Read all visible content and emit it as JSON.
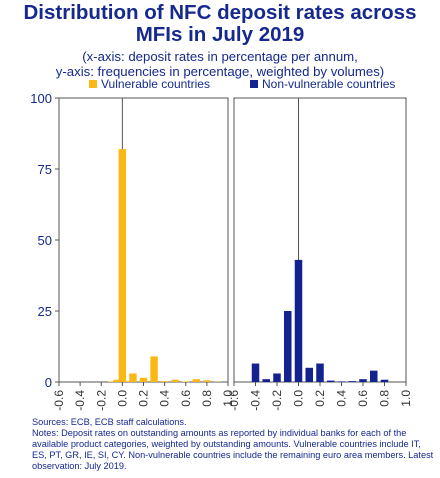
{
  "title_lines": [
    "Distribution of NFC deposit rates across",
    "MFIs in July 2019"
  ],
  "subtitle_lines": [
    "(x-axis: deposit rates in percentage per annum,",
    "y-axis: frequencies in percentage, weighted by volumes)"
  ],
  "colors": {
    "text": "#15298e",
    "vulnerable": "#fbb713",
    "non_vulnerable": "#14228f",
    "axis": "#555555",
    "tick": "#333333"
  },
  "chart_data": {
    "type": "bar",
    "y_ticks": [
      "0",
      "25",
      "50",
      "75",
      "100"
    ],
    "ylim": [
      0,
      100
    ],
    "xlim": [
      -0.6,
      1.0
    ],
    "x_ticks": [
      "-0.6",
      "-0.4",
      "-0.2",
      "0.0",
      "0.2",
      "0.4",
      "0.6",
      "0.8",
      "1.0"
    ],
    "x_tick_values": [
      -0.6,
      -0.4,
      -0.2,
      0.0,
      0.2,
      0.4,
      0.6,
      0.8,
      1.0
    ],
    "bar_width": 0.07,
    "series": [
      {
        "name": "Vulnerable countries",
        "color": "#fbb713",
        "x": [
          -0.1,
          -0.05,
          0.0,
          0.05,
          0.1,
          0.2,
          0.3,
          0.4,
          0.5,
          0.6,
          0.7,
          0.8,
          0.9
        ],
        "values": [
          0.2,
          0.8,
          82,
          0.3,
          3,
          1.5,
          9,
          0.3,
          0.8,
          0.2,
          1,
          0.6,
          0.1
        ]
      },
      {
        "name": "Non-vulnerable countries",
        "color": "#14228f",
        "x": [
          -0.4,
          -0.3,
          -0.2,
          -0.1,
          0.0,
          0.1,
          0.2,
          0.3,
          0.4,
          0.5,
          0.6,
          0.7,
          0.8
        ],
        "values": [
          6.5,
          1,
          3,
          25,
          43,
          5,
          6.5,
          0.5,
          0.2,
          0.3,
          1,
          4,
          0.8
        ]
      }
    ]
  },
  "notes_lines": [
    "Sources: ECB, ECB staff calculations.",
    "Notes: Deposit rates on outstanding amounts as reported by individual banks for each of the available product categories, weighted by outstanding amounts. Vulnerable countries include IT, ES, PT, GR, IE, SI, CY. Non-vulnerable countries include the remaining euro area members. Latest observation: July 2019."
  ]
}
